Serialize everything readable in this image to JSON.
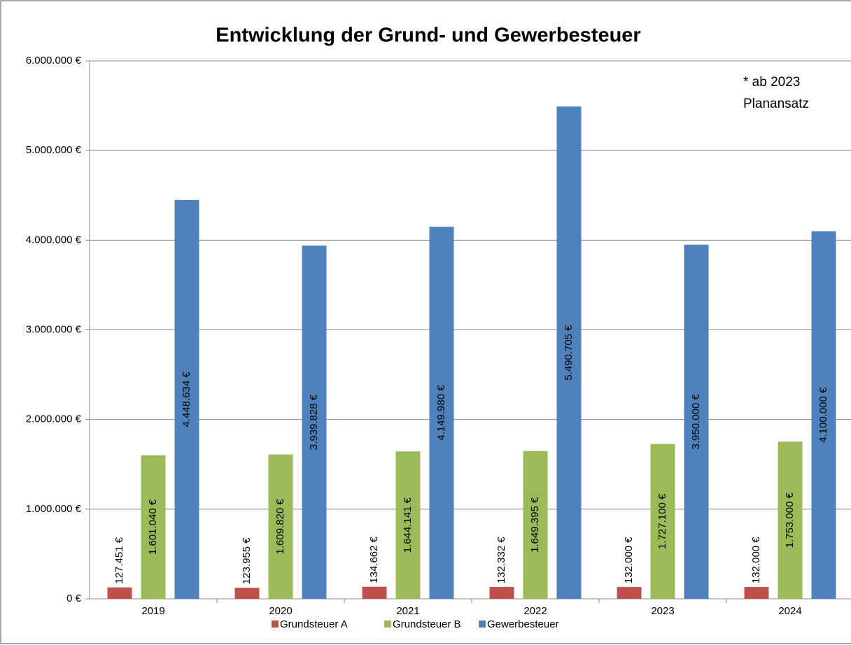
{
  "chart_data": {
    "type": "bar",
    "title": "Entwicklung der Grund- und Gewerbesteuer",
    "annotation": [
      "* ab 2023",
      "Planansatz"
    ],
    "categories": [
      "2019",
      "2020",
      "2021",
      "2022",
      "2023",
      "2024"
    ],
    "series": [
      {
        "name": "Grundsteuer A",
        "color": "#c0504d",
        "values": [
          127451,
          123955,
          134662,
          132332,
          132000,
          132000
        ],
        "value_labels": [
          "127.451 €",
          "123.955 €",
          "134.662 €",
          "132.332 €",
          "132.000 €",
          "132.000 €"
        ]
      },
      {
        "name": "Grundsteuer B",
        "color": "#9bbb59",
        "values": [
          1601040,
          1609820,
          1644141,
          1649395,
          1727100,
          1753000
        ],
        "value_labels": [
          "1.601.040 €",
          "1.609.820 €",
          "1.644.141 €",
          "1.649.395 €",
          "1.727.100 €",
          "1.753.000 €"
        ]
      },
      {
        "name": "Gewerbesteuer",
        "color": "#4f81bd",
        "values": [
          4448634,
          3939828,
          4149980,
          5490705,
          3950000,
          4100000
        ],
        "value_labels": [
          "4.448.634 €",
          "3.939.828 €",
          "4.149.980 €",
          "5.490.705 €",
          "3.950.000 €",
          "4.100.000 €"
        ]
      }
    ],
    "ylim": [
      0,
      6000000
    ],
    "yticks": [
      {
        "value": 0,
        "label": "0 €"
      },
      {
        "value": 1000000,
        "label": "1.000.000 €"
      },
      {
        "value": 2000000,
        "label": "2.000.000 €"
      },
      {
        "value": 3000000,
        "label": "3.000.000 €"
      },
      {
        "value": 4000000,
        "label": "4.000.000 €"
      },
      {
        "value": 5000000,
        "label": "5.000.000 €"
      },
      {
        "value": 6000000,
        "label": "6.000.000 €"
      }
    ],
    "grid": true,
    "legend": "bottom"
  }
}
